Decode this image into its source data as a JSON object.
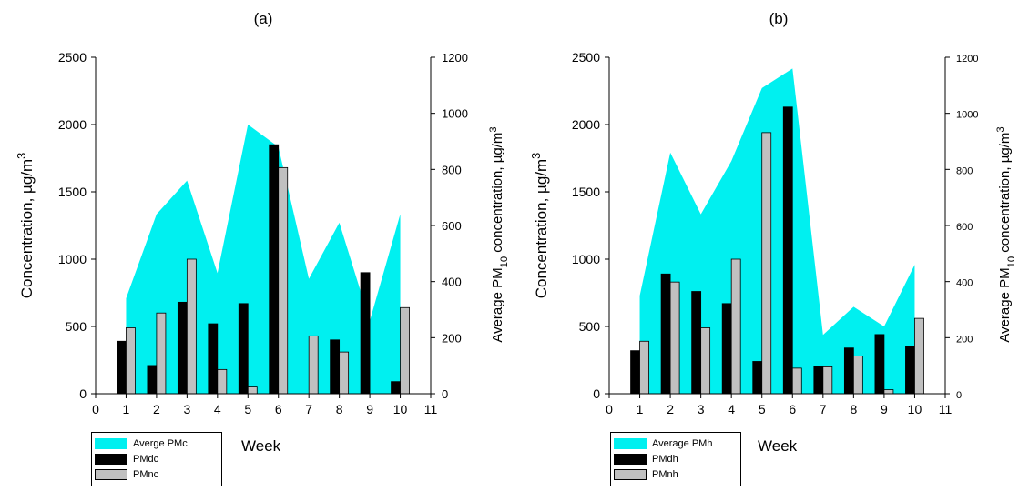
{
  "chart_data": [
    {
      "type": "bar",
      "title": "(a)",
      "xlabel": "Week",
      "ylabel": "Concentration, µg/m³",
      "y2label": "Average PM10 concentration, µg/m³",
      "xlim": [
        0,
        11
      ],
      "ylim": [
        0,
        2500
      ],
      "y2lim": [
        0,
        1200
      ],
      "x_ticks": [
        "0",
        "1",
        "2",
        "3",
        "4",
        "5",
        "6",
        "7",
        "8",
        "9",
        "10",
        "11"
      ],
      "y_ticks": [
        "0",
        "500",
        "1000",
        "1500",
        "2000",
        "2500"
      ],
      "y2_ticks": [
        "0",
        "200",
        "400",
        "600",
        "800",
        "1000",
        "1200"
      ],
      "x": [
        1,
        2,
        3,
        4,
        5,
        6,
        7,
        8,
        9,
        10
      ],
      "series": [
        {
          "name": "Averge PMc",
          "kind": "area",
          "axis": "right",
          "color": "#00f0f0",
          "values": [
            340,
            640,
            760,
            430,
            960,
            880,
            410,
            610,
            260,
            640
          ]
        },
        {
          "name": "PMdc",
          "kind": "bar",
          "axis": "left",
          "color": "#000000",
          "values": [
            390,
            210,
            680,
            520,
            670,
            1850,
            0,
            400,
            900,
            90
          ]
        },
        {
          "name": "PMnc",
          "kind": "bar",
          "axis": "left",
          "color": "#c0c0c0",
          "values": [
            490,
            600,
            1000,
            180,
            50,
            1680,
            430,
            310,
            0,
            640
          ]
        }
      ],
      "legend_position": "bottom-left"
    },
    {
      "type": "bar",
      "title": "(b)",
      "xlabel": "Week",
      "ylabel": "Concentration, µg/m³",
      "y2label": "Average PM10 concentration, µg/m³",
      "xlim": [
        0,
        11
      ],
      "ylim": [
        0,
        2500
      ],
      "y2lim": [
        0,
        1200
      ],
      "x_ticks": [
        "0",
        "1",
        "2",
        "3",
        "4",
        "5",
        "6",
        "7",
        "8",
        "9",
        "10",
        "11"
      ],
      "y_ticks": [
        "0",
        "500",
        "1000",
        "1500",
        "2000",
        "2500"
      ],
      "y2_ticks": [
        "0",
        "200",
        "400",
        "600",
        "800",
        "1000",
        "1200"
      ],
      "x": [
        1,
        2,
        3,
        4,
        5,
        6,
        7,
        8,
        9,
        10
      ],
      "series": [
        {
          "name": "Average PMh",
          "kind": "area",
          "axis": "right",
          "color": "#00f0f0",
          "values": [
            350,
            860,
            640,
            830,
            1090,
            1160,
            210,
            310,
            240,
            460
          ]
        },
        {
          "name": "PMdh",
          "kind": "bar",
          "axis": "left",
          "color": "#000000",
          "values": [
            320,
            890,
            760,
            670,
            240,
            2130,
            200,
            340,
            440,
            350
          ]
        },
        {
          "name": "PMnh",
          "kind": "bar",
          "axis": "left",
          "color": "#c0c0c0",
          "values": [
            390,
            830,
            490,
            1000,
            1940,
            190,
            200,
            280,
            30,
            560
          ]
        }
      ],
      "legend_position": "bottom-left"
    }
  ]
}
